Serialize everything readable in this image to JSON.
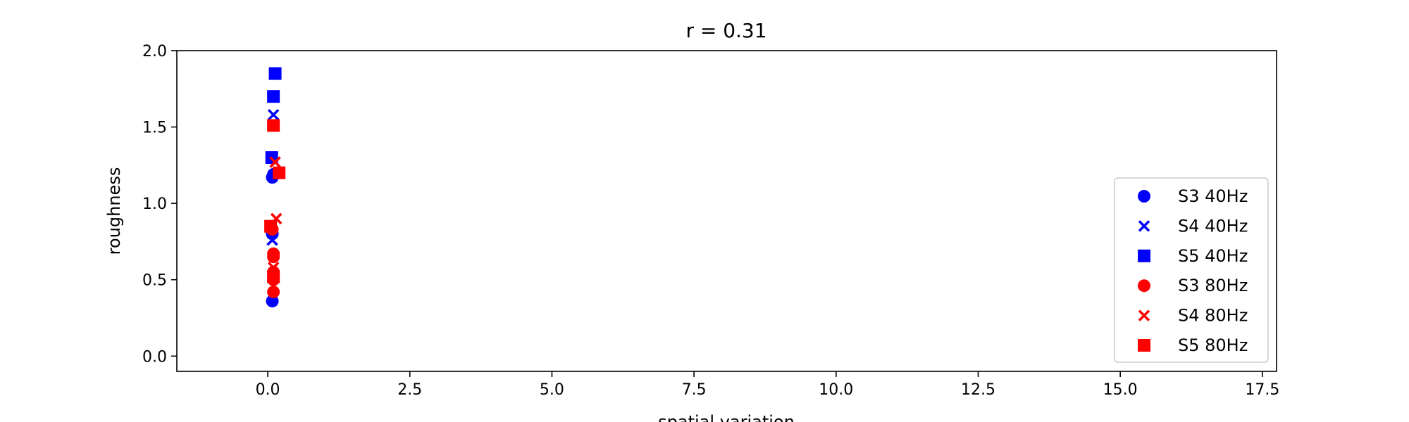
{
  "chart_data": {
    "type": "scatter",
    "title": "r = 0.31",
    "xlabel": "spatial variation",
    "ylabel": "roughness",
    "xlim": [
      -1.6,
      17.75
    ],
    "ylim": [
      -0.1,
      2.0
    ],
    "xticks": [
      0.0,
      2.5,
      5.0,
      7.5,
      10.0,
      12.5,
      15.0,
      17.5
    ],
    "xtick_labels": [
      "0.0",
      "2.5",
      "5.0",
      "7.5",
      "10.0",
      "12.5",
      "15.0",
      "17.5"
    ],
    "yticks": [
      0.0,
      0.5,
      1.0,
      1.5,
      2.0
    ],
    "ytick_labels": [
      "0.0",
      "0.5",
      "1.0",
      "1.5",
      "2.0"
    ],
    "grid": false,
    "legend_position": "lower-right",
    "series": [
      {
        "name": "S3 40Hz",
        "marker": "circle",
        "color": "#0000ff",
        "points": [
          [
            0.08,
            0.36
          ],
          [
            0.08,
            1.17
          ],
          [
            0.1,
            1.19
          ],
          [
            0.07,
            0.82
          ],
          [
            0.08,
            0.8
          ]
        ]
      },
      {
        "name": "S4 40Hz",
        "marker": "x",
        "color": "#0000ff",
        "points": [
          [
            0.1,
            1.58
          ],
          [
            0.08,
            0.76
          ]
        ]
      },
      {
        "name": "S5 40Hz",
        "marker": "square",
        "color": "#0000ff",
        "points": [
          [
            0.13,
            1.85
          ],
          [
            0.1,
            1.7
          ],
          [
            0.07,
            1.3
          ]
        ]
      },
      {
        "name": "S3 80Hz",
        "marker": "circle",
        "color": "#ff0000",
        "points": [
          [
            0.1,
            0.42
          ],
          [
            0.1,
            0.5
          ],
          [
            0.1,
            0.55
          ],
          [
            0.1,
            0.67
          ],
          [
            0.1,
            0.65
          ],
          [
            0.08,
            0.83
          ]
        ]
      },
      {
        "name": "S4 80Hz",
        "marker": "x",
        "color": "#ff0000",
        "points": [
          [
            0.13,
            1.27
          ],
          [
            0.15,
            0.9
          ],
          [
            0.1,
            0.58
          ]
        ]
      },
      {
        "name": "S5 80Hz",
        "marker": "square",
        "color": "#ff0000",
        "points": [
          [
            0.1,
            1.51
          ],
          [
            0.2,
            1.2
          ],
          [
            0.05,
            0.85
          ],
          [
            0.1,
            0.52
          ]
        ]
      }
    ]
  }
}
